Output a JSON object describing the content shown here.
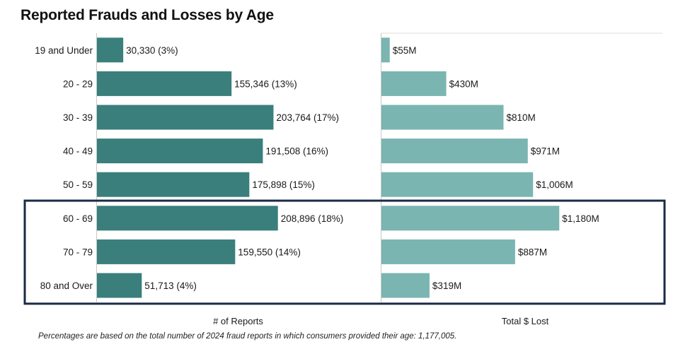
{
  "title": "Reported Frauds and Losses by Age",
  "footnote": "Percentages are based on the total number of 2024 fraud reports in which consumers provided their age:  1,177,005.",
  "colors": {
    "reports_bar": "#3a7f7b",
    "losses_bar": "#7ab5b1",
    "highlight_border": "#1b2a45",
    "axis_line": "#c8c8c8"
  },
  "chart_data": [
    {
      "type": "bar",
      "orientation": "horizontal",
      "categories": [
        "19 and Under",
        "20 - 29",
        "30 - 39",
        "40 - 49",
        "50 - 59",
        "60 - 69",
        "70 - 79",
        "80 and Over"
      ],
      "values": [
        30330,
        155346,
        203764,
        191508,
        175898,
        208896,
        159550,
        51713
      ],
      "data_labels": [
        "30,330 (3%)",
        "155,346 (13%)",
        "203,764 (17%)",
        "191,508 (16%)",
        "175,898 (15%)",
        "208,896 (18%)",
        "159,550 (14%)",
        "51,713 (4%)"
      ],
      "xlabel": "# of Reports",
      "xlim": [
        0,
        290000
      ],
      "grid": false
    },
    {
      "type": "bar",
      "orientation": "horizontal",
      "categories": [
        "19 and Under",
        "20 - 29",
        "30 - 39",
        "40 - 49",
        "50 - 59",
        "60 - 69",
        "70 - 79",
        "80 and Over"
      ],
      "values": [
        55,
        430,
        810,
        971,
        1006,
        1180,
        887,
        319
      ],
      "data_labels": [
        "$55M",
        "$430M",
        "$810M",
        "$971M",
        "$1,006M",
        "$1,180M",
        "$887M",
        "$319M"
      ],
      "xlabel": "Total $ Lost",
      "xlim": [
        0,
        1700
      ],
      "grid": false
    }
  ],
  "highlighted_categories": [
    "60 - 69",
    "70 - 79",
    "80 and Over"
  ]
}
